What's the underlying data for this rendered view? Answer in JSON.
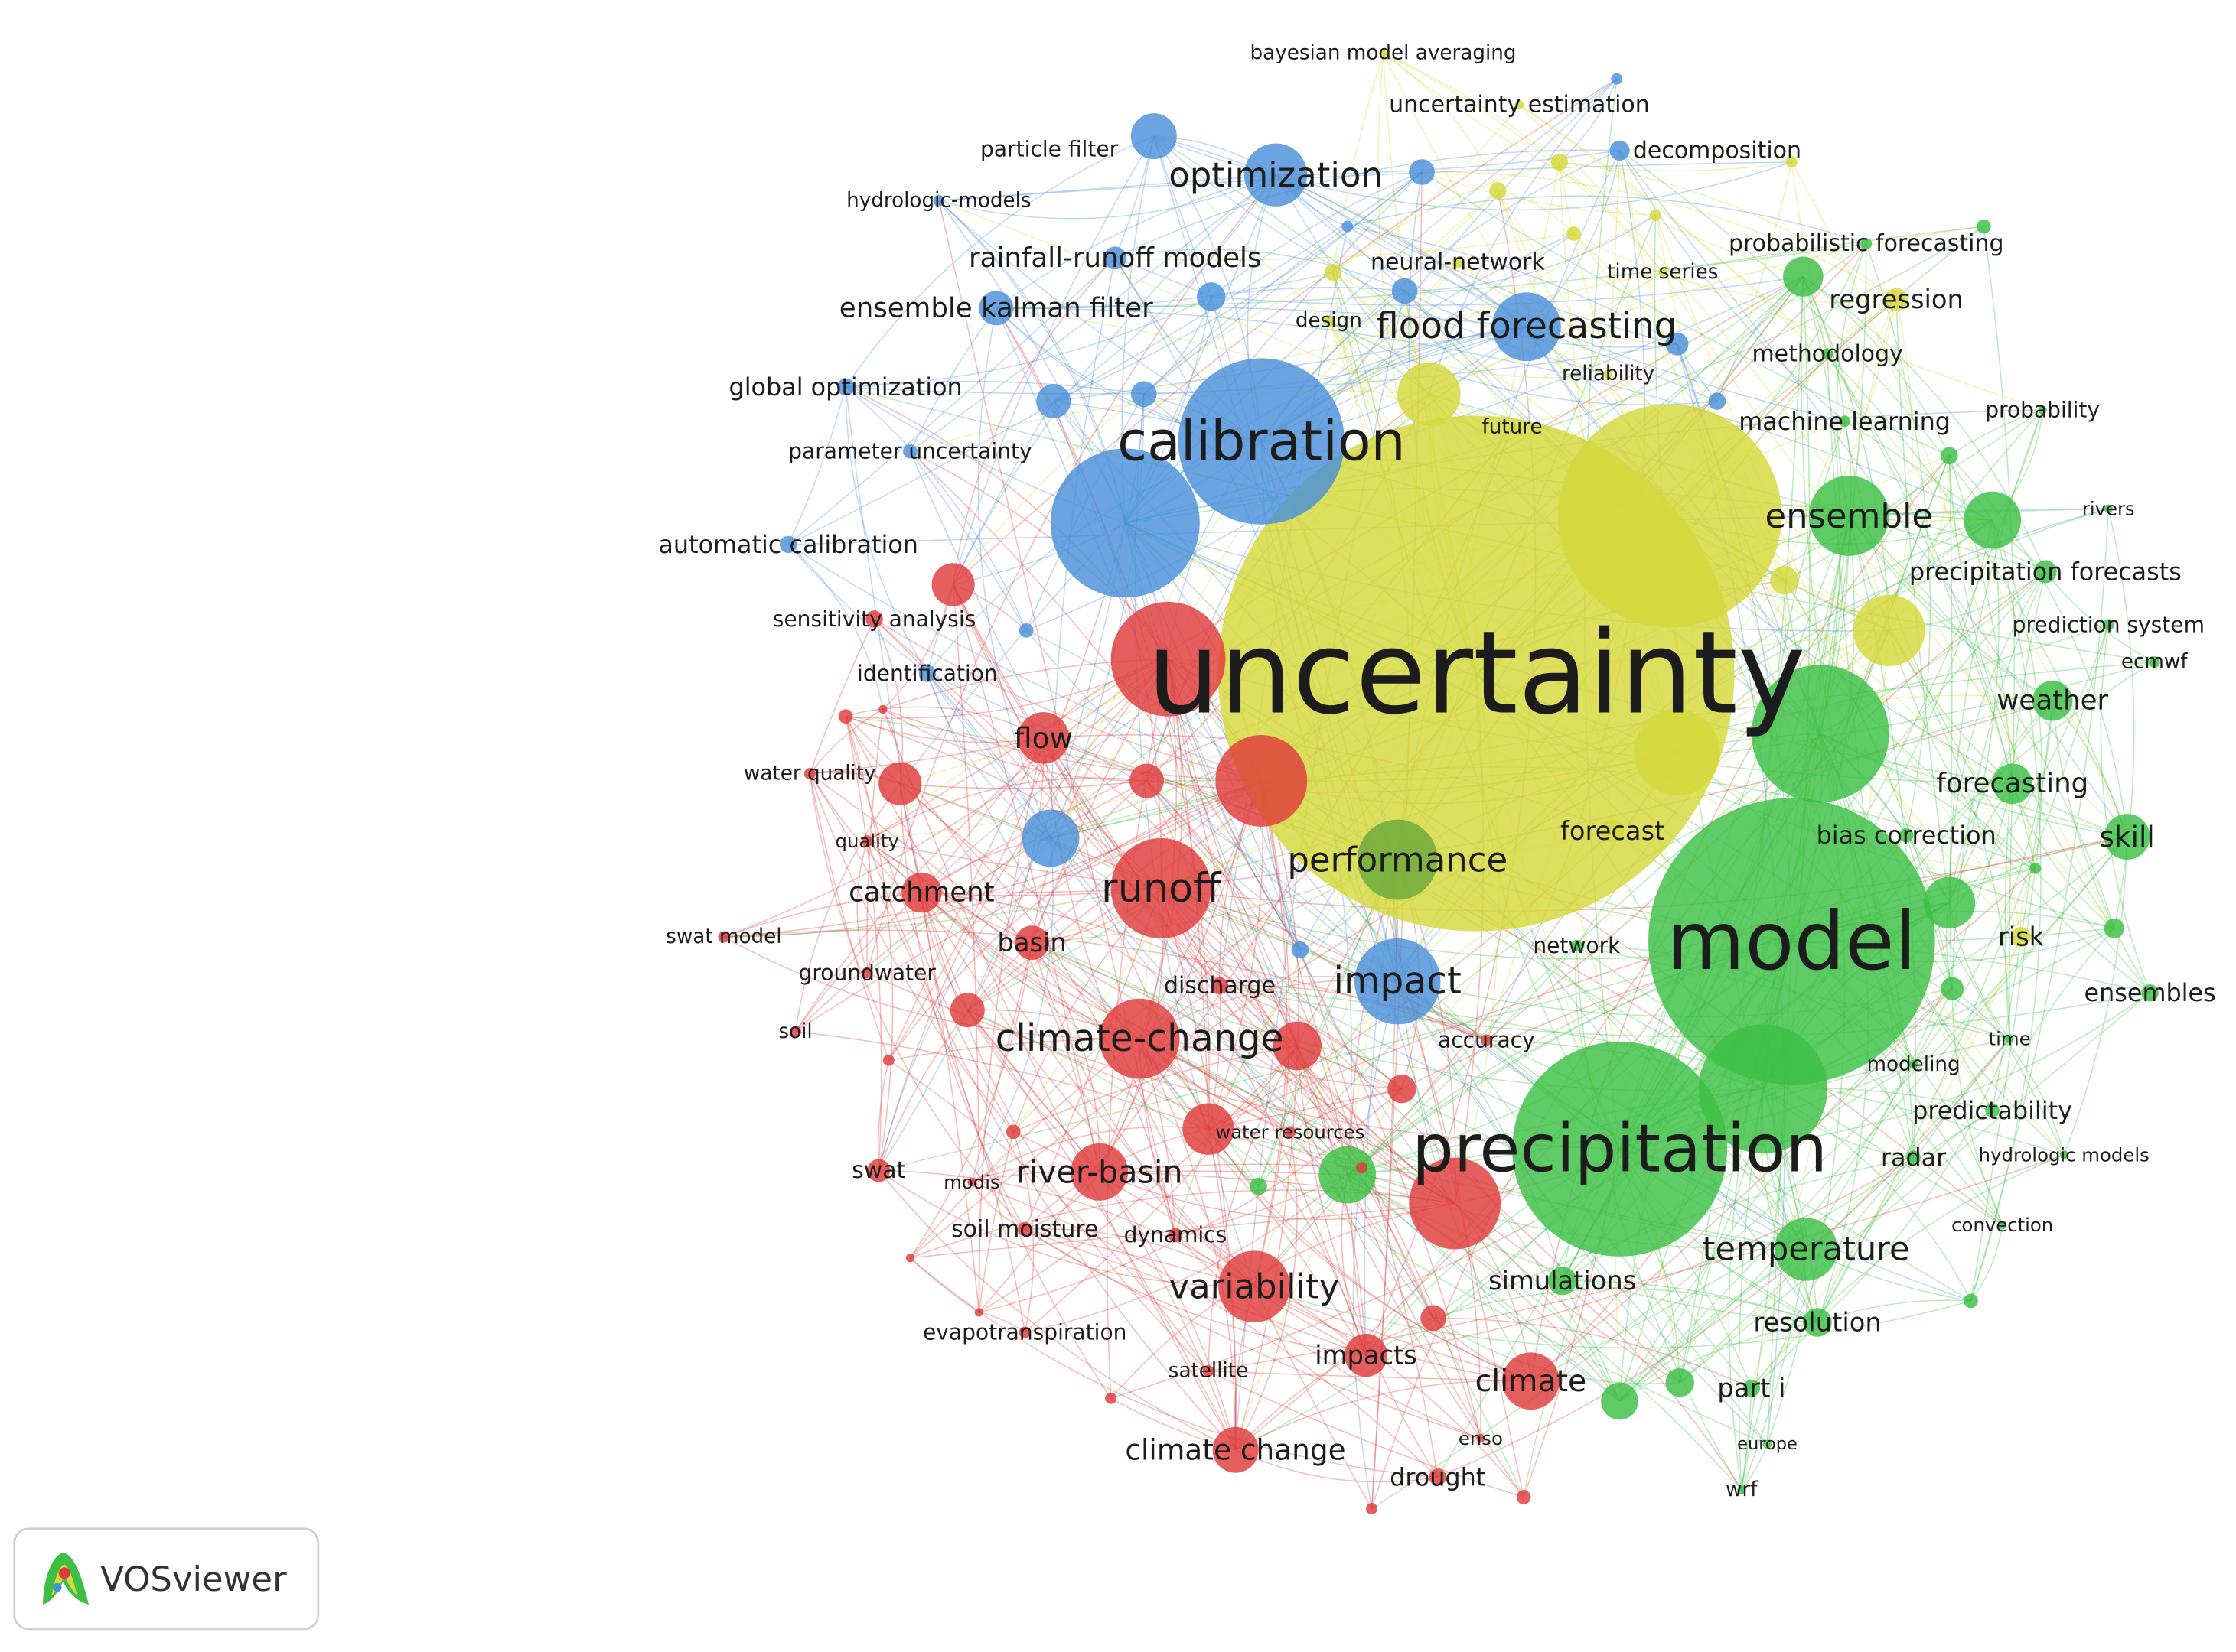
{
  "nodes": [
    {
      "label": "uncertainty",
      "color": "#d6d83a"
    },
    {
      "label": "model",
      "color": "#3cbf44"
    },
    {
      "label": "precipitation",
      "color": "#3cbf44"
    },
    {
      "label": "calibration",
      "color": "#4a90d9"
    },
    {
      "label": "runoff",
      "color": "#e03c3c"
    },
    {
      "label": "impact",
      "color": "#4a90d9"
    },
    {
      "label": "performance",
      "color": "#6aa83a"
    },
    {
      "label": "ensemble",
      "color": "#3cbf44"
    },
    {
      "label": "climate-change",
      "color": "#e03c3c"
    },
    {
      "label": "variability",
      "color": "#e03c3c"
    },
    {
      "label": "temperature",
      "color": "#3cbf44"
    },
    {
      "label": "flood forecasting",
      "color": "#4a90d9"
    },
    {
      "label": "optimization",
      "color": "#4a90d9"
    },
    {
      "label": "river-basin",
      "color": "#e03c3c"
    },
    {
      "label": "climate",
      "color": "#e03c3c"
    },
    {
      "label": "climate change",
      "color": "#e03c3c"
    },
    {
      "label": "flow",
      "color": "#e03c3c"
    },
    {
      "label": "catchment",
      "color": "#e03c3c"
    },
    {
      "label": "basin",
      "color": "#e03c3c"
    },
    {
      "label": "skill",
      "color": "#3cbf44"
    },
    {
      "label": "weather",
      "color": "#3cbf44"
    },
    {
      "label": "forecasting",
      "color": "#3cbf44"
    },
    {
      "label": "forecast",
      "color": "#d6d83a"
    },
    {
      "label": "impacts",
      "color": "#e03c3c"
    },
    {
      "label": "drought",
      "color": "#e03c3c"
    },
    {
      "label": "rainfall-runoff models",
      "color": "#4a90d9"
    },
    {
      "label": "ensemble kalman filter",
      "color": "#4a90d9"
    },
    {
      "label": "global optimization",
      "color": "#4a90d9"
    },
    {
      "label": "parameter uncertainty",
      "color": "#4a90d9"
    },
    {
      "label": "automatic calibration",
      "color": "#4a90d9"
    },
    {
      "label": "sensitivity analysis",
      "color": "#e03c3c"
    },
    {
      "label": "identification",
      "color": "#4a90d9"
    },
    {
      "label": "particle filter",
      "color": "#4a90d9"
    },
    {
      "label": "hydrologic-models",
      "color": "#4a90d9"
    },
    {
      "label": "decomposition",
      "color": "#4a90d9"
    },
    {
      "label": "uncertainty estimation",
      "color": "#d6d83a"
    },
    {
      "label": "bayesian model averaging",
      "color": "#d6d83a"
    },
    {
      "label": "neural-network",
      "color": "#d6d83a"
    },
    {
      "label": "design",
      "color": "#d6d83a"
    },
    {
      "label": "time series",
      "color": "#d6d83a"
    },
    {
      "label": "reliability",
      "color": "#d6d83a"
    },
    {
      "label": "future",
      "color": "#d6d83a"
    },
    {
      "label": "regression",
      "color": "#d6d83a"
    },
    {
      "label": "probabilistic forecasting",
      "color": "#3cbf44"
    },
    {
      "label": "methodology",
      "color": "#3cbf44"
    },
    {
      "label": "machine learning",
      "color": "#3cbf44"
    },
    {
      "label": "probability",
      "color": "#3cbf44"
    },
    {
      "label": "rivers",
      "color": "#3cbf44"
    },
    {
      "label": "precipitation forecasts",
      "color": "#3cbf44"
    },
    {
      "label": "prediction system",
      "color": "#3cbf44"
    },
    {
      "label": "ecmwf",
      "color": "#3cbf44"
    },
    {
      "label": "bias correction",
      "color": "#3cbf44"
    },
    {
      "label": "network",
      "color": "#3cbf44"
    },
    {
      "label": "risk",
      "color": "#d6d83a"
    },
    {
      "label": "ensembles",
      "color": "#3cbf44"
    },
    {
      "label": "time",
      "color": "#3cbf44"
    },
    {
      "label": "modeling",
      "color": "#3cbf44"
    },
    {
      "label": "predictability",
      "color": "#3cbf44"
    },
    {
      "label": "radar",
      "color": "#3cbf44"
    },
    {
      "label": "hydrologic models",
      "color": "#3cbf44"
    },
    {
      "label": "convection",
      "color": "#3cbf44"
    },
    {
      "label": "simulations",
      "color": "#3cbf44"
    },
    {
      "label": "resolution",
      "color": "#3cbf44"
    },
    {
      "label": "part i",
      "color": "#3cbf44"
    },
    {
      "label": "europe",
      "color": "#3cbf44"
    },
    {
      "label": "wrf",
      "color": "#3cbf44"
    },
    {
      "label": "accuracy",
      "color": "#e03c3c"
    },
    {
      "label": "water resources",
      "color": "#e03c3c"
    },
    {
      "label": "discharge",
      "color": "#e03c3c"
    },
    {
      "label": "groundwater",
      "color": "#e03c3c"
    },
    {
      "label": "soil",
      "color": "#e03c3c"
    },
    {
      "label": "swat model",
      "color": "#e03c3c"
    },
    {
      "label": "water quality",
      "color": "#e03c3c"
    },
    {
      "label": "quality",
      "color": "#e03c3c"
    },
    {
      "label": "swat",
      "color": "#e03c3c"
    },
    {
      "label": "modis",
      "color": "#e03c3c"
    },
    {
      "label": "soil moisture",
      "color": "#e03c3c"
    },
    {
      "label": "dynamics",
      "color": "#e03c3c"
    },
    {
      "label": "evapotranspiration",
      "color": "#e03c3c"
    },
    {
      "label": "satellite",
      "color": "#e03c3c"
    },
    {
      "label": "enso",
      "color": "#e03c3c"
    }
  ],
  "logo": {
    "text": "VOSviewer"
  }
}
